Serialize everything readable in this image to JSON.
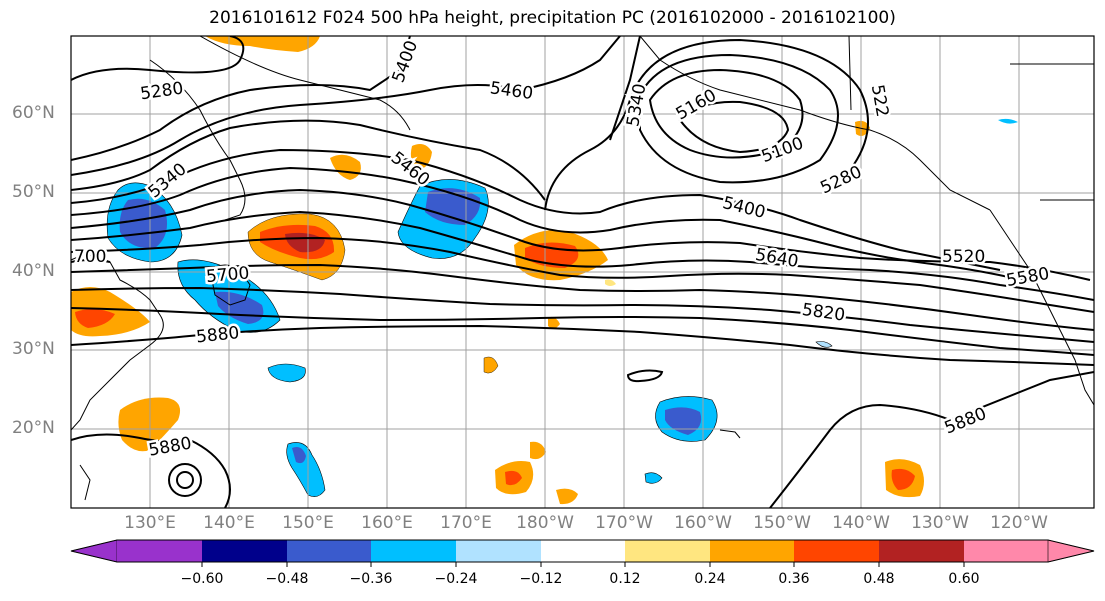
{
  "title": "2016101612 F024 500 hPa height, precipitation PC (2016102000 - 2016102100)",
  "lat_labels": [
    "60°N",
    "50°N",
    "40°N",
    "30°N",
    "20°N"
  ],
  "lon_labels": [
    "130°E",
    "140°E",
    "150°E",
    "160°E",
    "170°E",
    "180°W",
    "170°W",
    "160°W",
    "150°W",
    "140°W",
    "130°W",
    "120°W"
  ],
  "contour_labels": {
    "c5280a": "5280",
    "c5400a": "5400",
    "c5460": "5460",
    "c5340a": "5340",
    "c5160": "5160",
    "c5100": "5100",
    "c522": "522",
    "c5340b": "5340",
    "c5460b": "5460",
    "c5280b": "5280",
    "c5400b": "5400",
    "c5520": "5520",
    "c5580": "5580",
    "c5640": "5640",
    "c700": "700",
    "c5700": "5700",
    "c5820": "5820",
    "c5880a": "5880",
    "c5880b": "5880",
    "c5880c": "5880"
  },
  "colorbar": {
    "ticks": [
      "−0.60",
      "−0.48",
      "−0.36",
      "−0.24",
      "−0.12",
      "0.12",
      "0.24",
      "0.36",
      "0.48",
      "0.60"
    ],
    "colors": [
      "#9932cc",
      "#00008b",
      "#3a5bcd",
      "#00bfff",
      "#b0e2ff",
      "#ffffff",
      "#ffe680",
      "#ffa500",
      "#ff4500",
      "#b22222",
      "#ff88aa"
    ]
  },
  "colors": {
    "frame": "#000000",
    "grid": "#a0a0a0",
    "axis_label": "#808080"
  }
}
